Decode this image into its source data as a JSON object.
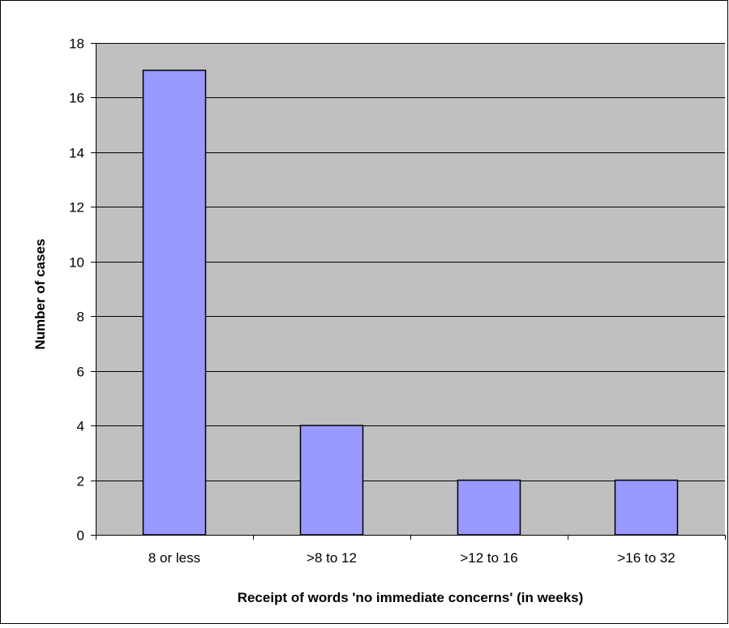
{
  "chart_data": {
    "type": "bar",
    "categories": [
      "8 or less",
      ">8 to 12",
      ">12 to 16",
      ">16 to 32"
    ],
    "values": [
      17,
      4,
      2,
      2
    ],
    "title": "",
    "xlabel": "Receipt of words 'no immediate concerns' (in weeks)",
    "ylabel": "Number of cases",
    "ylim": [
      0,
      18
    ],
    "yticks": [
      0,
      2,
      4,
      6,
      8,
      10,
      12,
      14,
      16,
      18
    ],
    "grid": true,
    "legend": "none",
    "colors": {
      "bar_fill": "#9999FF",
      "plot_background": "#C0C0C0",
      "gridline": "#000000",
      "axis": "#000000"
    }
  }
}
